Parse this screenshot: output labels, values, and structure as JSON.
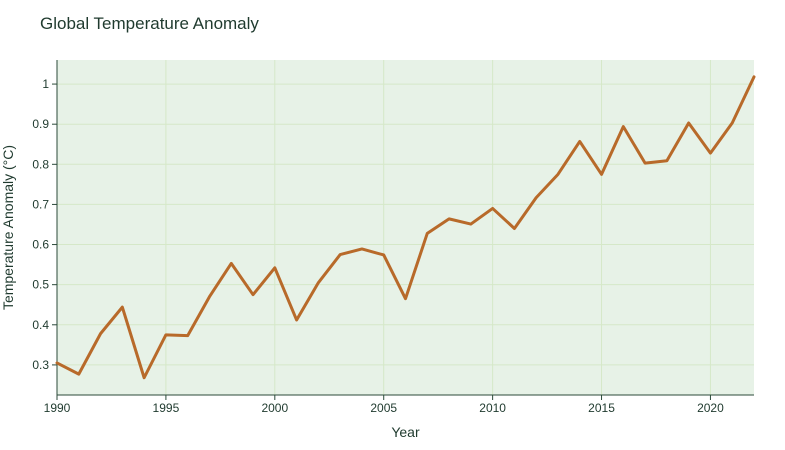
{
  "chart_data": {
    "type": "line",
    "title": "Global Temperature Anomaly",
    "xlabel": "Year",
    "ylabel": "Temperature Anomaly (°C)",
    "x": [
      1990,
      1991,
      1992,
      1993,
      1994,
      1995,
      1996,
      1997,
      1998,
      1999,
      2000,
      2001,
      2002,
      2003,
      2004,
      2005,
      2006,
      2007,
      2008,
      2009,
      2010,
      2011,
      2012,
      2013,
      2014,
      2015,
      2016,
      2017,
      2018,
      2019,
      2020,
      2021,
      2022
    ],
    "series": [
      {
        "values": [
          0.305,
          0.277,
          0.378,
          0.444,
          0.268,
          0.375,
          0.373,
          0.47,
          0.553,
          0.475,
          0.542,
          0.412,
          0.505,
          0.575,
          0.589,
          0.574,
          0.465,
          0.628,
          0.664,
          0.651,
          0.69,
          0.64,
          0.717,
          0.775,
          0.857,
          0.775,
          0.894,
          0.803,
          0.809,
          0.903,
          0.828,
          0.903,
          1.018
        ],
        "color": "#b86a2a"
      }
    ],
    "xlim": [
      1990,
      2022
    ],
    "ylim": [
      0.225,
      1.06
    ],
    "xticks": [
      "1990",
      "1995",
      "2000",
      "2005",
      "2010",
      "2015",
      "2020"
    ],
    "yticks": [
      "0.3",
      "0.4",
      "0.5",
      "0.6",
      "0.7",
      "0.8",
      "0.9",
      "1"
    ],
    "grid": true,
    "legend": "none",
    "colors": {
      "plot_background": "#e7f2e7",
      "grid": "#d5e8c8",
      "axis": "#2b4a3a",
      "text": "#1f3a2e"
    }
  }
}
